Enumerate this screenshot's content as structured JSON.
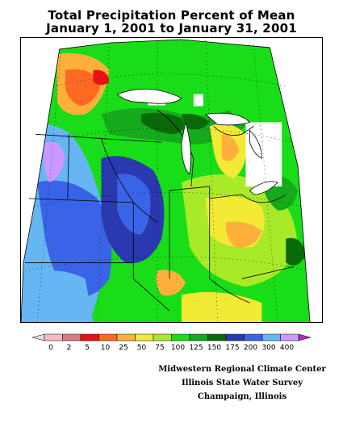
{
  "title": {
    "line1": "Total Precipitation Percent of Mean",
    "line2": "January 1, 2001 to January 31, 2001"
  },
  "legend": {
    "labels": [
      "0",
      "2",
      "5",
      "10",
      "25",
      "50",
      "75",
      "100",
      "125",
      "150",
      "175",
      "200",
      "300",
      "400"
    ],
    "colors": [
      "#f7b9c8",
      "#d97a84",
      "#ee1010",
      "#ff6a23",
      "#ffb03a",
      "#f2ea34",
      "#a9ea28",
      "#18dd18",
      "#14aa1c",
      "#0a6a0a",
      "#2a39b0",
      "#3a64e8",
      "#66b6f4",
      "#cc99ff"
    ],
    "under_color": "#dddddd",
    "over_color": "#aa33aa"
  },
  "credits": {
    "line1": "Midwestern Regional Climate Center",
    "line2": "Illinois State Water Survey",
    "line3": "Champaign, Illinois"
  }
}
